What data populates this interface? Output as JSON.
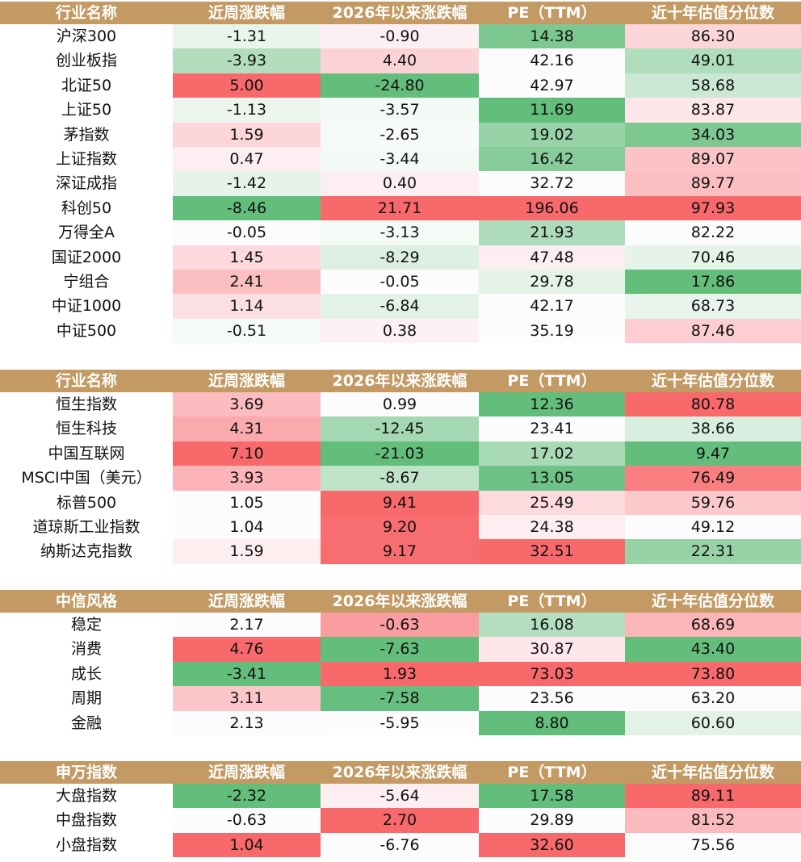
{
  "colors": {
    "header_bg": "#C49A64",
    "header_text": "#FFFFFF",
    "positive_strong": "#F76A6C",
    "negative_strong": "#63BE7B"
  },
  "tables": [
    {
      "headers": [
        "行业名称",
        "近周涨跌幅",
        "2026年以来涨跌幅",
        "PE（TTM）",
        "近十年估值分位数"
      ],
      "rows": [
        {
          "name": "沪深300",
          "cells": [
            "-1.31",
            "-0.90",
            "14.38",
            "86.30"
          ],
          "bg": [
            "#E8F4EC",
            "#FDF0F2",
            "#7CC890",
            "#FCD6D9"
          ]
        },
        {
          "name": "创业板指",
          "cells": [
            "-3.93",
            "4.40",
            "42.16",
            "49.01"
          ],
          "bg": [
            "#B2DEBE",
            "#FBD2D6",
            "#FCFCFF",
            "#B0DDBC"
          ]
        },
        {
          "name": "北证50",
          "cells": [
            "5.00",
            "-24.80",
            "42.97",
            "58.68"
          ],
          "bg": [
            "#F8696B",
            "#63BE7B",
            "#FCFCFF",
            "#CBE8D4"
          ]
        },
        {
          "name": "上证50",
          "cells": [
            "-1.13",
            "-3.57",
            "11.69",
            "83.87"
          ],
          "bg": [
            "#ECF6EF",
            "#F3F9F5",
            "#63BE7B",
            "#FCE6E9"
          ]
        },
        {
          "name": "茅指数",
          "cells": [
            "1.59",
            "-2.65",
            "19.02",
            "34.03"
          ],
          "bg": [
            "#FCD6D9",
            "#F7FBF8",
            "#98D3A8",
            "#7CC890"
          ]
        },
        {
          "name": "上证指数",
          "cells": [
            "0.47",
            "-3.44",
            "16.42",
            "89.07"
          ],
          "bg": [
            "#FDEFF1",
            "#F3F9F5",
            "#88CC9A",
            "#FBC3C6"
          ]
        },
        {
          "name": "深证成指",
          "cells": [
            "-1.42",
            "0.40",
            "32.72",
            "89.77"
          ],
          "bg": [
            "#E6F3EA",
            "#FDEFF1",
            "#FCFCFF",
            "#FBBEC1"
          ]
        },
        {
          "name": "科创50",
          "cells": [
            "-8.46",
            "21.71",
            "196.06",
            "97.93"
          ],
          "bg": [
            "#63BE7B",
            "#F8696B",
            "#F8696B",
            "#F8696B"
          ]
        },
        {
          "name": "万得全A",
          "cells": [
            "-0.05",
            "-3.13",
            "21.93",
            "82.22"
          ],
          "bg": [
            "#FBFBFD",
            "#F4FAF6",
            "#AEDCBB",
            "#FCFCFF"
          ]
        },
        {
          "name": "国证2000",
          "cells": [
            "1.45",
            "-8.29",
            "47.48",
            "70.46"
          ],
          "bg": [
            "#FCD9DC",
            "#DCEFE2",
            "#FDEFF1",
            "#E5F3E9"
          ]
        },
        {
          "name": "宁组合",
          "cells": [
            "2.41",
            "-0.05",
            "29.78",
            "17.86"
          ],
          "bg": [
            "#FBBEC1",
            "#FCFCFF",
            "#E4F2E8",
            "#63BE7B"
          ]
        },
        {
          "name": "中证1000",
          "cells": [
            "1.14",
            "-6.84",
            "42.17",
            "68.73"
          ],
          "bg": [
            "#FCDFE2",
            "#E2F2E7",
            "#FCFCFF",
            "#E8F4EC"
          ]
        },
        {
          "name": "中证500",
          "cells": [
            "-0.51",
            "0.38",
            "35.19",
            "87.46"
          ],
          "bg": [
            "#F4FAF6",
            "#FDF1F3",
            "#FCFCFF",
            "#FCCED1"
          ]
        }
      ]
    },
    {
      "headers": [
        "行业名称",
        "近周涨跌幅",
        "2026年以来涨跌幅",
        "PE（TTM）",
        "近十年估值分位数"
      ],
      "rows": [
        {
          "name": "恒生指数",
          "cells": [
            "3.69",
            "0.99",
            "12.36",
            "80.78"
          ],
          "bg": [
            "#FBBCBF",
            "#FCFCFF",
            "#63BE7B",
            "#F8696B"
          ]
        },
        {
          "name": "恒生科技",
          "cells": [
            "4.31",
            "-12.45",
            "23.41",
            "38.66"
          ],
          "bg": [
            "#FAAAAD",
            "#A3D8B2",
            "#FCFCFF",
            "#D8EEDF"
          ]
        },
        {
          "name": "中国互联网",
          "cells": [
            "7.10",
            "-21.03",
            "17.02",
            "9.47"
          ],
          "bg": [
            "#F8696B",
            "#63BE7B",
            "#A8DAB6",
            "#63BE7B"
          ]
        },
        {
          "name": "MSCI中国（美元）",
          "cells": [
            "3.93",
            "-8.67",
            "13.05",
            "76.49"
          ],
          "bg": [
            "#FBB4B7",
            "#BFE3C9",
            "#6EC285",
            "#F87E80"
          ]
        },
        {
          "name": "标普500",
          "cells": [
            "1.05",
            "9.41",
            "25.49",
            "59.76"
          ],
          "bg": [
            "#FCFCFF",
            "#F8696B",
            "#FCDADD",
            "#FBC8CB"
          ]
        },
        {
          "name": "道琼斯工业指数",
          "cells": [
            "1.04",
            "9.20",
            "24.38",
            "49.12"
          ],
          "bg": [
            "#FCFCFF",
            "#F86D6F",
            "#FDEFF1",
            "#FCFCFF"
          ]
        },
        {
          "name": "纳斯达克指数",
          "cells": [
            "1.59",
            "9.17",
            "32.51",
            "22.31"
          ],
          "bg": [
            "#FDEEF0",
            "#F86E70",
            "#F8696B",
            "#98D3A8"
          ]
        }
      ]
    },
    {
      "headers": [
        "中信风格",
        "近周涨跌幅",
        "2026年以来涨跌幅",
        "PE（TTM）",
        "近十年估值分位数"
      ],
      "rows": [
        {
          "name": "稳定",
          "cells": [
            "2.17",
            "-0.63",
            "16.08",
            "68.69"
          ],
          "bg": [
            "#FCFCFF",
            "#FA9DA0",
            "#B3DEBF",
            "#FBB6B9"
          ]
        },
        {
          "name": "消费",
          "cells": [
            "4.76",
            "-7.63",
            "30.87",
            "43.40"
          ],
          "bg": [
            "#F8696B",
            "#63BE7B",
            "#FDE7EA",
            "#63BE7B"
          ]
        },
        {
          "name": "成长",
          "cells": [
            "-3.41",
            "1.93",
            "73.03",
            "73.80"
          ],
          "bg": [
            "#63BE7B",
            "#F8696B",
            "#F8696B",
            "#F8696B"
          ]
        },
        {
          "name": "周期",
          "cells": [
            "3.11",
            "-7.58",
            "23.56",
            "63.20"
          ],
          "bg": [
            "#FBC6C9",
            "#66BF7E",
            "#FCFCFF",
            "#FCFCFF"
          ]
        },
        {
          "name": "金融",
          "cells": [
            "2.13",
            "-5.95",
            "8.80",
            "60.60"
          ],
          "bg": [
            "#FBFBFE",
            "#FCFCFF",
            "#63BE7B",
            "#E2F2E7"
          ]
        }
      ]
    },
    {
      "headers": [
        "申万指数",
        "近周涨跌幅",
        "2026年以来涨跌幅",
        "PE（TTM）",
        "近十年估值分位数"
      ],
      "rows": [
        {
          "name": "大盘指数",
          "cells": [
            "-2.32",
            "-5.64",
            "17.58",
            "89.11"
          ],
          "bg": [
            "#63BE7B",
            "#FDEFF1",
            "#63BE7B",
            "#F8696B"
          ]
        },
        {
          "name": "中盘指数",
          "cells": [
            "-0.63",
            "2.70",
            "29.89",
            "81.52"
          ],
          "bg": [
            "#FCFCFF",
            "#F8696B",
            "#FCFCFF",
            "#FBBABD"
          ]
        },
        {
          "name": "小盘指数",
          "cells": [
            "1.04",
            "-6.76",
            "32.60",
            "75.56"
          ],
          "bg": [
            "#F8696B",
            "#FCFCFF",
            "#F8696B",
            "#FCFCFF"
          ]
        }
      ]
    }
  ]
}
